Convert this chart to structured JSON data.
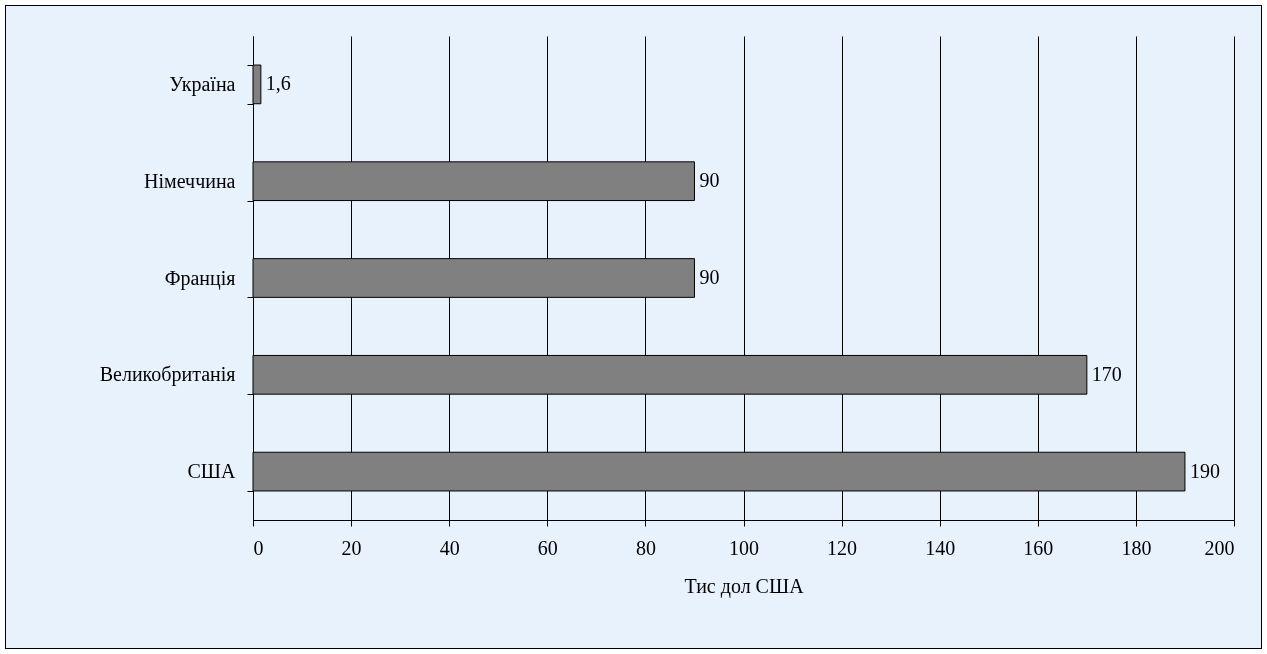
{
  "chart_data": {
    "type": "bar",
    "orientation": "horizontal",
    "xlabel": "Тис дол США",
    "categories": [
      "Україна",
      "Німеччина",
      "Франція",
      "Великобританія",
      "США"
    ],
    "values": [
      1.6,
      90,
      90,
      170,
      190
    ],
    "color": "#808080",
    "value_labels": [
      "1,6",
      "90",
      "90",
      "170",
      "190"
    ],
    "xlim": [
      0,
      200
    ],
    "xticks": [
      0,
      20,
      40,
      60,
      80,
      100,
      120,
      140,
      160,
      180,
      200
    ],
    "grid": "x"
  }
}
